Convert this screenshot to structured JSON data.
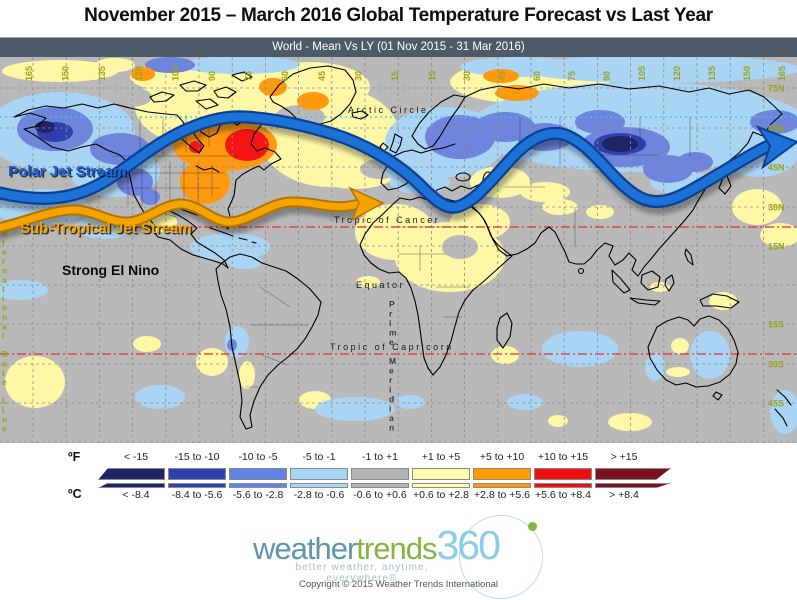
{
  "title": "November 2015 – March 2016 Global Temperature Forecast vs Last Year",
  "map_header": "World - Mean Vs LY (01 Nov 2015 - 31 Mar 2016)",
  "annotations": {
    "polar_jet": "Polar Jet Stream",
    "subtropical_jet": "Sub-Tropical Jet Stream",
    "el_nino": "Strong El Nino"
  },
  "map_labels": {
    "arctic_circle": "Arctic Circle",
    "tropic_cancer": "Tropic of Cancer",
    "equator": "Equator",
    "tropic_capricorn": "Tropic of Capricorn",
    "prime_meridian": "Prime Meridian",
    "date_line": "International Date Line",
    "latitudes": [
      "75N",
      "60N",
      "45N",
      "30N",
      "15N",
      "15S",
      "30S",
      "45S"
    ],
    "longitudes_left": [
      "165",
      "150",
      "135",
      "120",
      "105",
      "90",
      "75",
      "60",
      "45",
      "30",
      "15"
    ],
    "longitudes_right": [
      "15",
      "30",
      "45",
      "60",
      "75",
      "90",
      "105",
      "120",
      "135",
      "150",
      "165"
    ]
  },
  "legend": {
    "f_label": "ºF",
    "c_label": "ºC",
    "bins": [
      {
        "f": "< -15",
        "c": "< -8.4",
        "color": "#1e2566"
      },
      {
        "f": "-15 to -10",
        "c": "-8.4 to -5.6",
        "color": "#2f3fae"
      },
      {
        "f": "-10 to -5",
        "c": "-5.6 to -2.8",
        "color": "#5f85e8"
      },
      {
        "f": "-5 to -1",
        "c": "-2.8 to -0.6",
        "color": "#a5d7f7"
      },
      {
        "f": "-1 to +1",
        "c": "-0.6 to +0.6",
        "color": "#b5b5b5"
      },
      {
        "f": "+1 to +5",
        "c": "+0.6 to +2.8",
        "color": "#ffffaa"
      },
      {
        "f": "+5 to +10",
        "c": "+2.8 to +5.6",
        "color": "#ff9a00"
      },
      {
        "f": "+10 to +15",
        "c": "+5.6 to +8.4",
        "color": "#f30e0e"
      },
      {
        "f": "> +15",
        "c": "> +8.4",
        "color": "#7c1220"
      }
    ]
  },
  "logo": {
    "word1": "weather",
    "word2": "trends",
    "word3": "360",
    "tagline": "better weather, anytime, everywhere®"
  },
  "copyright": "Copyright © 2015 Weather Trends International",
  "colors": {
    "header_bar": "#4f5a68",
    "map_base_gray": "#b9b9b9",
    "grid_label_olive": "#9aa21e",
    "polar_jet_blue": "#1b62d6",
    "subtropical_jet_orange": "#f0a500",
    "anomaly_light_blue": "#a9d4f3",
    "anomaly_medium_blue": "#6e84dd",
    "anomaly_dark_blue": "#2f3fae",
    "anomaly_navy": "#1e2566",
    "anomaly_yellow": "#fdf7a6",
    "anomaly_orange": "#ff9a10",
    "anomaly_red": "#f51515",
    "anomaly_maroon": "#7c1220"
  }
}
